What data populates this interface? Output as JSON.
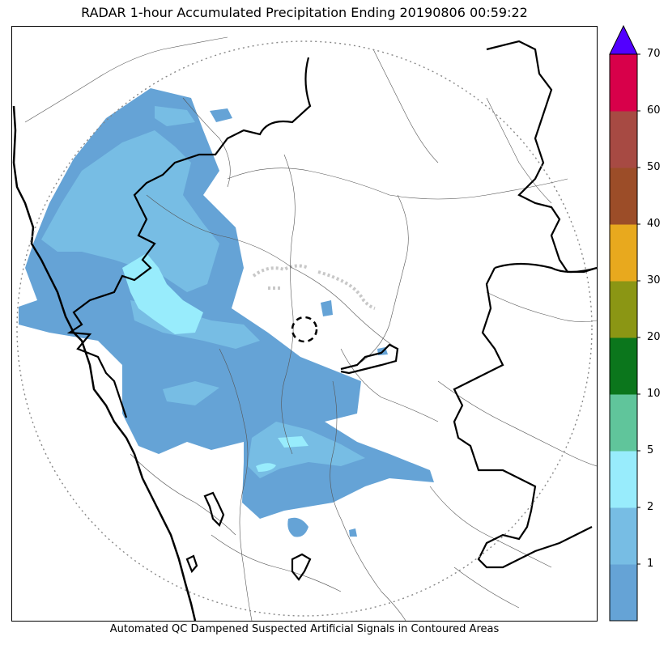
{
  "title": "RADAR 1-hour Accumulated Precipitation Ending 20190806 00:59:22",
  "caption": "Automated QC Dampened Suspected Artificial Signals in Contoured Areas",
  "colorbar": {
    "ticks": [
      "1",
      "2",
      "5",
      "10",
      "20",
      "30",
      "40",
      "50",
      "60",
      "70"
    ],
    "colors": [
      "#65a3d6",
      "#77bde4",
      "#98ecfc",
      "#60c59b",
      "#0b761c",
      "#8b9614",
      "#e8a91e",
      "#9c4d28",
      "#a74a43",
      "#d8004a"
    ],
    "extend_color": "#5200ff"
  },
  "legend_levels": [
    {
      "label": "1",
      "color": "#65a3d6"
    },
    {
      "label": "2",
      "color": "#77bde4"
    },
    {
      "label": "5",
      "color": "#98ecfc"
    }
  ]
}
